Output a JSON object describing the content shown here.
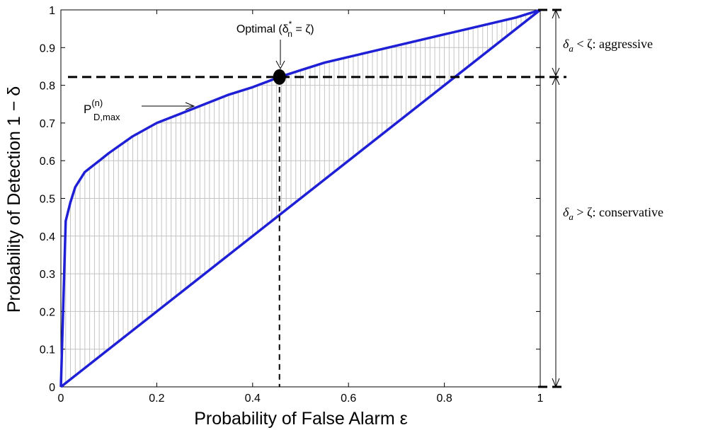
{
  "chart_data": {
    "type": "line",
    "title": "",
    "xlabel": "Probability of False Alarm ε",
    "ylabel": "Probability of Detection 1 − δ",
    "xlim": [
      0,
      1
    ],
    "ylim": [
      0,
      1
    ],
    "xticks": [
      0,
      0.2,
      0.4,
      0.6,
      0.8,
      1
    ],
    "xtick_labels": [
      "0",
      "0.2",
      "0.4",
      "0.6",
      "0.8",
      "1"
    ],
    "yticks": [
      0,
      0.1,
      0.2,
      0.3,
      0.4,
      0.5,
      0.6,
      0.7,
      0.8,
      0.9,
      1
    ],
    "ytick_labels": [
      "0",
      "0.1",
      "0.2",
      "0.3",
      "0.4",
      "0.5",
      "0.6",
      "0.7",
      "0.8",
      "0.9",
      "1"
    ],
    "grid": false,
    "series": [
      {
        "name": "P_{D,max}^{(n)}",
        "color": "#1f1fd6",
        "x": [
          0,
          0.01,
          0.02,
          0.03,
          0.05,
          0.08,
          0.1,
          0.15,
          0.2,
          0.25,
          0.3,
          0.35,
          0.4,
          0.456,
          0.5,
          0.55,
          0.6,
          0.65,
          0.7,
          0.75,
          0.8,
          0.85,
          0.9,
          0.95,
          1.0
        ],
        "y": [
          0,
          0.44,
          0.49,
          0.53,
          0.57,
          0.6,
          0.62,
          0.665,
          0.7,
          0.725,
          0.75,
          0.775,
          0.795,
          0.822,
          0.84,
          0.86,
          0.875,
          0.89,
          0.905,
          0.92,
          0.935,
          0.95,
          0.965,
          0.98,
          1.0
        ]
      },
      {
        "name": "",
        "color": "#1f1fd6",
        "x": [
          0,
          1
        ],
        "y": [
          0,
          1
        ]
      }
    ],
    "region_shading": {
      "between": "P_{D,max}^{(n)} and diagonal",
      "style": "vertical gray hatch lines"
    },
    "optimal_point": {
      "x": 0.456,
      "y": 0.822,
      "label": "Optimal (δ",
      "label_sub": "n",
      "label_sup": "*",
      "label_tail": " = ζ)"
    },
    "curve_label": {
      "base": "P",
      "sup": "(n)",
      "sub": "D,max",
      "at_x": 0.28,
      "at_y": 0.75
    },
    "reference_lines": [
      {
        "orientation": "horizontal",
        "y": 0.822,
        "style": "thick dashed"
      },
      {
        "orientation": "vertical",
        "x": 0.456,
        "style": "dashed"
      }
    ],
    "right_annotations": {
      "top": {
        "range": [
          0.822,
          1.0
        ],
        "delta": "δ",
        "sub": "a",
        "rel": " < ζ: aggressive"
      },
      "bottom": {
        "range": [
          0,
          0.822
        ],
        "delta": "δ",
        "sub": "a",
        "rel": " > ζ: conservative"
      }
    }
  }
}
